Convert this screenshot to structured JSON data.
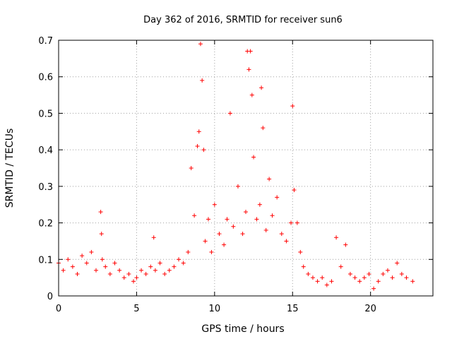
{
  "chart_data": {
    "type": "scatter",
    "title": "Day 362 of 2016, SRMTID for receiver sun6",
    "xlabel": "GPS time / hours",
    "ylabel": "SRMTID / TECUs",
    "xlim": [
      0,
      24
    ],
    "ylim": [
      0,
      0.7
    ],
    "xticks": [
      0,
      5,
      10,
      15,
      20
    ],
    "xtick_labels": [
      "0",
      "5",
      "10",
      "15",
      "20"
    ],
    "yticks": [
      0,
      0.1,
      0.2,
      0.3,
      0.4,
      0.5,
      0.6,
      0.7
    ],
    "ytick_labels": [
      "0",
      "0.1",
      "0.2",
      "0.3",
      "0.4",
      "0.5",
      "0.6",
      "0.7"
    ],
    "grid": true,
    "marker": "plus",
    "color": "#ff0000",
    "series": [
      {
        "name": "SRMTID",
        "x": [
          0.0,
          0.3,
          0.6,
          0.9,
          1.2,
          1.5,
          1.8,
          2.1,
          2.4,
          2.7,
          2.75,
          2.8,
          3.0,
          3.3,
          3.6,
          3.9,
          4.2,
          4.5,
          4.8,
          5.0,
          5.3,
          5.6,
          5.9,
          6.1,
          6.2,
          6.5,
          6.8,
          7.1,
          7.4,
          7.7,
          8.0,
          8.3,
          8.5,
          8.7,
          8.9,
          9.0,
          9.1,
          9.2,
          9.3,
          9.4,
          9.6,
          9.8,
          10.0,
          10.3,
          10.6,
          10.8,
          11.0,
          11.2,
          11.5,
          11.8,
          12.0,
          12.1,
          12.2,
          12.3,
          12.4,
          12.5,
          12.7,
          12.9,
          13.0,
          13.1,
          13.3,
          13.5,
          13.7,
          14.0,
          14.3,
          14.6,
          14.9,
          15.0,
          15.1,
          15.3,
          15.5,
          15.7,
          16.0,
          16.3,
          16.6,
          16.9,
          17.2,
          17.5,
          17.8,
          18.1,
          18.4,
          18.7,
          19.0,
          19.3,
          19.6,
          19.9,
          20.2,
          20.5,
          20.8,
          21.1,
          21.4,
          21.7,
          22.0,
          22.3,
          22.7
        ],
        "y": [
          0.09,
          0.07,
          0.1,
          0.08,
          0.06,
          0.11,
          0.09,
          0.12,
          0.07,
          0.23,
          0.17,
          0.1,
          0.08,
          0.06,
          0.09,
          0.07,
          0.05,
          0.06,
          0.04,
          0.05,
          0.07,
          0.06,
          0.08,
          0.16,
          0.07,
          0.09,
          0.06,
          0.07,
          0.08,
          0.1,
          0.09,
          0.12,
          0.35,
          0.22,
          0.41,
          0.45,
          0.69,
          0.59,
          0.4,
          0.15,
          0.21,
          0.12,
          0.25,
          0.17,
          0.14,
          0.21,
          0.5,
          0.19,
          0.3,
          0.17,
          0.23,
          0.67,
          0.62,
          0.67,
          0.55,
          0.38,
          0.21,
          0.25,
          0.57,
          0.46,
          0.18,
          0.32,
          0.22,
          0.27,
          0.17,
          0.15,
          0.2,
          0.52,
          0.29,
          0.2,
          0.12,
          0.08,
          0.06,
          0.05,
          0.04,
          0.05,
          0.03,
          0.04,
          0.16,
          0.08,
          0.14,
          0.06,
          0.05,
          0.04,
          0.05,
          0.06,
          0.02,
          0.04,
          0.06,
          0.07,
          0.05,
          0.09,
          0.06,
          0.05,
          0.04
        ]
      }
    ]
  }
}
